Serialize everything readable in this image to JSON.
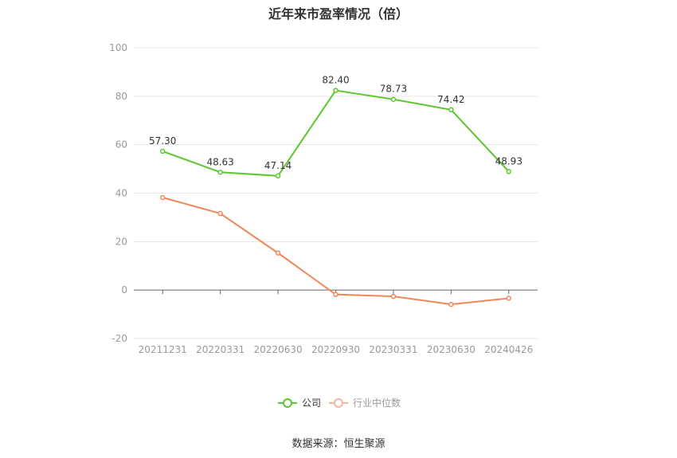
{
  "chart_data": {
    "type": "line",
    "title": "近年来市盈率情况（倍）",
    "categories": [
      "20211231",
      "20220331",
      "20220630",
      "20220930",
      "20230331",
      "20230630",
      "20240426"
    ],
    "series": [
      {
        "name": "公司",
        "values": [
          57.3,
          48.63,
          47.14,
          82.4,
          78.73,
          74.42,
          48.93
        ],
        "color": "#5cc72c",
        "labels": [
          "57.30",
          "48.63",
          "47.14",
          "82.40",
          "78.73",
          "74.42",
          "48.93"
        ]
      },
      {
        "name": "行业中位数",
        "values": [
          38.2,
          31.6,
          15.3,
          -1.8,
          -2.6,
          -5.9,
          -3.4
        ],
        "color": "#f0875a"
      }
    ],
    "y_ticks": [
      "100",
      "80",
      "60",
      "40",
      "20",
      "0",
      "-20"
    ],
    "ylim": [
      -20,
      100
    ],
    "grid": true,
    "legend_position": "bottom"
  },
  "source": "数据来源：恒生聚源"
}
